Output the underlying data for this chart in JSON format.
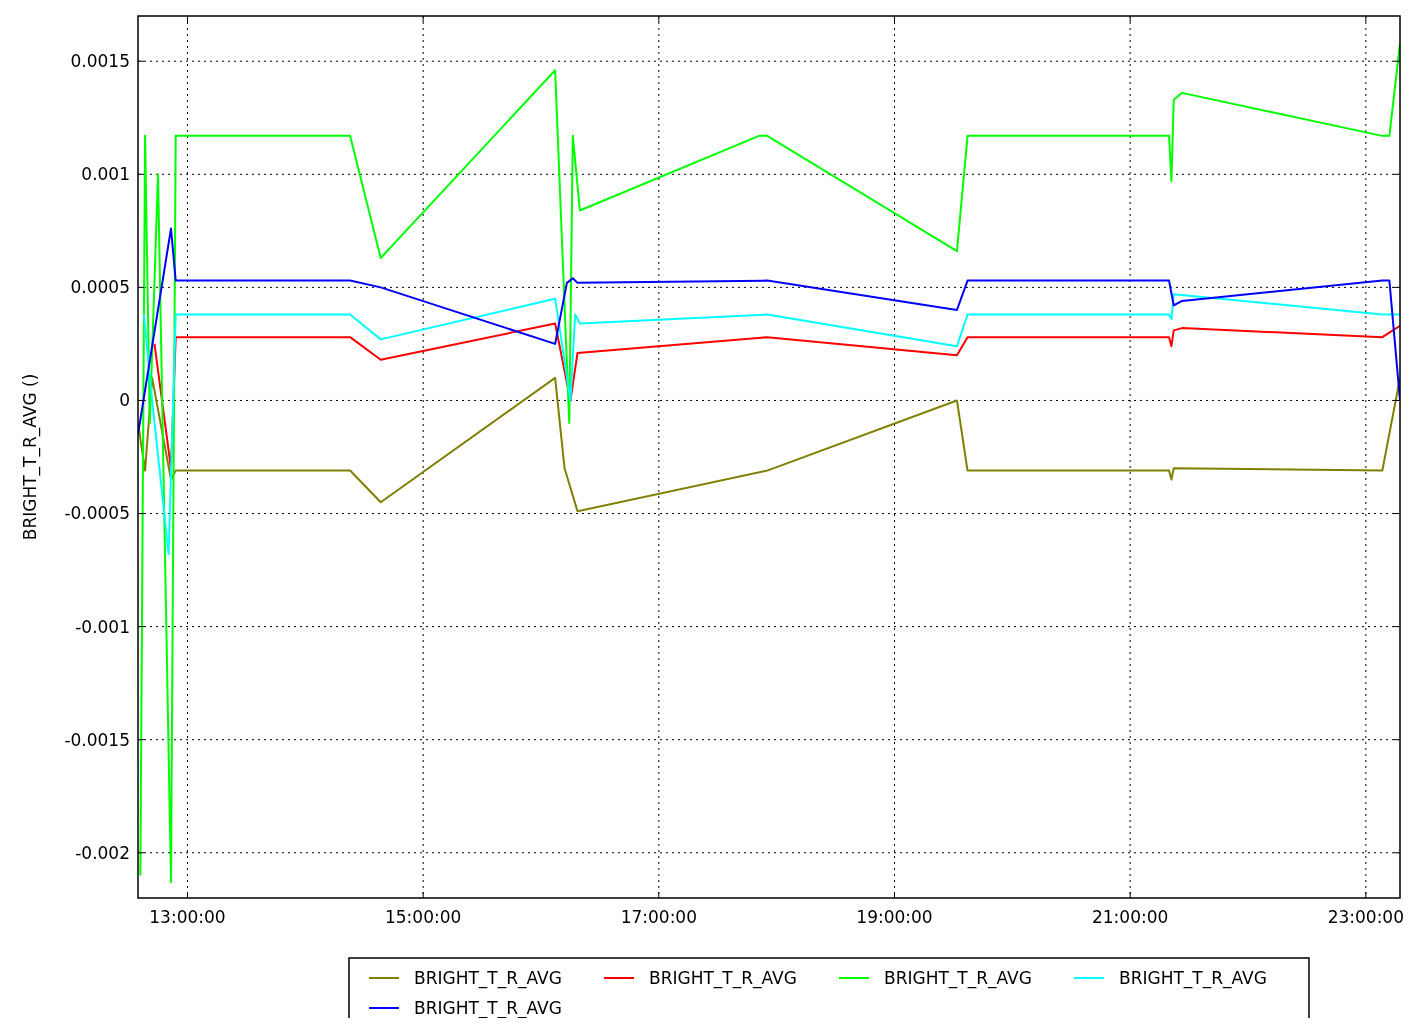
{
  "chart_data": {
    "type": "line",
    "ylabel": "BRIGHT_T_R_AVG ()",
    "xlim": [
      12.58,
      23.29
    ],
    "ylim": [
      -0.0022,
      0.0017
    ],
    "xticks": [
      {
        "value": 13,
        "label": "13:00:00"
      },
      {
        "value": 15,
        "label": "15:00:00"
      },
      {
        "value": 17,
        "label": "17:00:00"
      },
      {
        "value": 19,
        "label": "19:00:00"
      },
      {
        "value": 21,
        "label": "21:00:00"
      },
      {
        "value": 23,
        "label": "23:00:00"
      }
    ],
    "yticks": [
      -0.002,
      -0.0015,
      -0.001,
      -0.0005,
      0,
      0.0005,
      0.001,
      0.0015
    ],
    "grid": true,
    "legend": "bottom",
    "line_style": "solid",
    "marker": "none",
    "series": [
      {
        "name": "BRIGHT_T_R_AVG",
        "color": "#808000",
        "x": [
          12.58,
          12.64,
          12.7,
          12.86,
          12.9,
          14.38,
          14.64,
          16.12,
          16.2,
          16.31,
          17.92,
          19.53,
          19.62,
          21.33,
          21.35,
          21.37,
          23.14,
          23.29
        ],
        "values": [
          -0.0001,
          -0.00031,
          0.0001,
          -0.00035,
          -0.00031,
          -0.00031,
          -0.00045,
          0.0001,
          -0.0003,
          -0.00049,
          -0.00031,
          0,
          -0.00031,
          -0.00031,
          -0.00035,
          -0.0003,
          -0.00031,
          0.0001
        ]
      },
      {
        "name": "BRIGHT_T_R_AVG",
        "color": "#ff0000",
        "x": [
          12.72,
          12.86,
          12.9,
          14.38,
          14.64,
          16.12,
          16.25,
          16.31,
          17.92,
          19.53,
          19.62,
          21.33,
          21.35,
          21.37,
          21.44,
          23.14,
          23.29
        ],
        "values": [
          0.00025,
          -0.0003,
          0.00028,
          0.00028,
          0.00018,
          0.00034,
          0.0,
          0.00021,
          0.00028,
          0.0002,
          0.00028,
          0.00028,
          0.00024,
          0.00031,
          0.00032,
          0.00028,
          0.00033
        ]
      },
      {
        "name": "BRIGHT_T_R_AVG",
        "color": "#00ff00",
        "x": [
          12.6,
          12.64,
          12.68,
          12.75,
          12.86,
          12.9,
          14.38,
          14.64,
          16.12,
          16.24,
          16.27,
          16.33,
          17.85,
          17.92,
          19.53,
          19.62,
          21.33,
          21.35,
          21.37,
          21.44,
          23.14,
          23.2,
          23.29
        ],
        "values": [
          -0.0021,
          0.00117,
          -0.0001,
          0.001,
          -0.00213,
          0.00117,
          0.00117,
          0.00063,
          0.00146,
          -0.0001,
          0.00117,
          0.00084,
          0.00117,
          0.00117,
          0.00066,
          0.00117,
          0.00117,
          0.00097,
          0.00133,
          0.00136,
          0.00117,
          0.00117,
          0.00158
        ]
      },
      {
        "name": "BRIGHT_T_R_AVG",
        "color": "#00ffff",
        "x": [
          12.63,
          12.7,
          12.84,
          12.9,
          14.38,
          14.64,
          16.12,
          16.25,
          16.29,
          16.33,
          17.92,
          19.53,
          19.62,
          21.33,
          21.35,
          21.37,
          23.14,
          23.29
        ],
        "values": [
          0.00038,
          0.0,
          -0.00068,
          0.00038,
          0.00038,
          0.00027,
          0.00045,
          0.0,
          0.00038,
          0.00034,
          0.00038,
          0.00024,
          0.00038,
          0.00038,
          0.00036,
          0.00047,
          0.00038,
          0.00038
        ]
      },
      {
        "name": "BRIGHT_T_R_AVG",
        "color": "#0000ff",
        "x": [
          12.58,
          12.86,
          12.9,
          14.38,
          14.64,
          16.12,
          16.22,
          16.27,
          16.31,
          17.92,
          19.53,
          19.62,
          21.33,
          21.37,
          21.44,
          23.14,
          23.2,
          23.29
        ],
        "values": [
          -0.00015,
          0.00076,
          0.00053,
          0.00053,
          0.0005,
          0.00025,
          0.00052,
          0.00054,
          0.00052,
          0.00053,
          0.0004,
          0.00053,
          0.00053,
          0.00042,
          0.00044,
          0.00053,
          0.00053,
          0.0
        ]
      }
    ]
  }
}
